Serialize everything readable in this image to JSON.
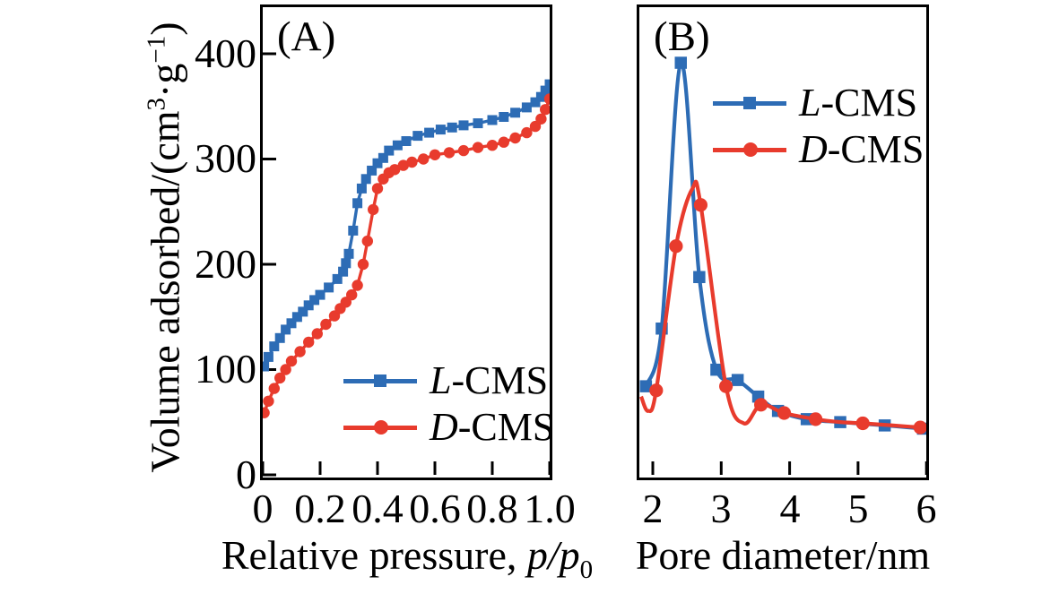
{
  "figure": {
    "background": "#ffffff",
    "axis_color": "#000000",
    "colors": {
      "l_cms_blue": "#2d6cb5",
      "d_cms_red": "#e83b2d"
    }
  },
  "chart_data": [
    {
      "panel": "A",
      "panel_label": "(A)",
      "type": "line",
      "smooth": false,
      "xlabel": "Relative pressure, p/p₀",
      "xlabel_parts": {
        "lead": "Relative pressure, ",
        "math": "p/p",
        "sub": "0"
      },
      "ylabel": "Volume adsorbed/(cm³·g⁻¹)",
      "ylabel_parts": [
        "Volume adsorbed/(cm",
        "3",
        "·g",
        "−1",
        ")"
      ],
      "xlim": [
        0,
        1.0
      ],
      "ylim": [
        0,
        444
      ],
      "x_ticks": [
        "0",
        "0.2",
        "0.4",
        "0.6",
        "0.8",
        "1.0"
      ],
      "y_ticks": [
        "0",
        "100",
        "200",
        "300",
        "400"
      ],
      "grid": false,
      "legend_position": "lower right",
      "series": [
        {
          "name": "L-CMS",
          "name_parts": {
            "italic": "L",
            "rest": "-CMS"
          },
          "color": "#2d6cb5",
          "marker": "square",
          "points": [
            [
              0.005,
              103
            ],
            [
              0.02,
              112
            ],
            [
              0.04,
              122
            ],
            [
              0.06,
              130
            ],
            [
              0.08,
              138
            ],
            [
              0.1,
              144
            ],
            [
              0.12,
              150
            ],
            [
              0.14,
              155
            ],
            [
              0.16,
              161
            ],
            [
              0.18,
              166
            ],
            [
              0.2,
              171
            ],
            [
              0.23,
              178
            ],
            [
              0.26,
              186
            ],
            [
              0.28,
              193
            ],
            [
              0.29,
              201
            ],
            [
              0.3,
              210
            ],
            [
              0.315,
              232
            ],
            [
              0.33,
              258
            ],
            [
              0.345,
              272
            ],
            [
              0.36,
              281
            ],
            [
              0.38,
              289
            ],
            [
              0.4,
              296
            ],
            [
              0.42,
              301
            ],
            [
              0.44,
              308
            ],
            [
              0.47,
              313
            ],
            [
              0.5,
              317
            ],
            [
              0.54,
              322
            ],
            [
              0.58,
              325
            ],
            [
              0.62,
              328
            ],
            [
              0.66,
              330
            ],
            [
              0.7,
              332
            ],
            [
              0.75,
              334
            ],
            [
              0.8,
              337
            ],
            [
              0.84,
              340
            ],
            [
              0.88,
              344
            ],
            [
              0.92,
              349
            ],
            [
              0.95,
              354
            ],
            [
              0.97,
              359
            ],
            [
              0.985,
              365
            ],
            [
              1.0,
              371
            ]
          ]
        },
        {
          "name": "D-CMS",
          "name_parts": {
            "italic": "D",
            "rest": "-CMS"
          },
          "color": "#e83b2d",
          "marker": "circle",
          "points": [
            [
              0.005,
              59
            ],
            [
              0.02,
              70
            ],
            [
              0.04,
              82
            ],
            [
              0.06,
              92
            ],
            [
              0.08,
              100
            ],
            [
              0.1,
              108
            ],
            [
              0.13,
              117
            ],
            [
              0.16,
              126
            ],
            [
              0.19,
              134
            ],
            [
              0.22,
              143
            ],
            [
              0.25,
              151
            ],
            [
              0.27,
              158
            ],
            [
              0.29,
              164
            ],
            [
              0.31,
              171
            ],
            [
              0.33,
              180
            ],
            [
              0.35,
              200
            ],
            [
              0.365,
              222
            ],
            [
              0.385,
              252
            ],
            [
              0.4,
              272
            ],
            [
              0.42,
              281
            ],
            [
              0.44,
              287
            ],
            [
              0.46,
              290
            ],
            [
              0.49,
              294
            ],
            [
              0.52,
              297
            ],
            [
              0.56,
              300
            ],
            [
              0.6,
              304
            ],
            [
              0.65,
              306
            ],
            [
              0.7,
              308
            ],
            [
              0.75,
              311
            ],
            [
              0.8,
              313
            ],
            [
              0.84,
              316
            ],
            [
              0.88,
              320
            ],
            [
              0.92,
              325
            ],
            [
              0.95,
              331
            ],
            [
              0.97,
              338
            ],
            [
              0.985,
              347
            ],
            [
              1.0,
              357
            ]
          ]
        }
      ]
    },
    {
      "panel": "B",
      "panel_label": "(B)",
      "type": "line",
      "smooth": true,
      "xlabel": "Pore diameter/nm",
      "ylabel": "",
      "xlim": [
        1.8,
        6.0
      ],
      "ylim": [
        0,
        1.13
      ],
      "x_ticks": [
        "2",
        "3",
        "4",
        "5",
        "6"
      ],
      "grid": false,
      "legend_position": "upper right",
      "series": [
        {
          "name": "L-CMS",
          "name_parts": {
            "italic": "L",
            "rest": "-CMS"
          },
          "color": "#2d6cb5",
          "marker": "square",
          "peak_diameter_nm": 2.41,
          "points": [
            [
              1.9,
              0.215
            ],
            [
              2.13,
              0.355
            ],
            [
              2.41,
              1.0
            ],
            [
              2.68,
              0.48
            ],
            [
              2.93,
              0.255
            ],
            [
              3.24,
              0.23
            ],
            [
              3.54,
              0.19
            ],
            [
              3.83,
              0.155
            ],
            [
              4.25,
              0.135
            ],
            [
              4.74,
              0.128
            ],
            [
              5.39,
              0.12
            ],
            [
              5.95,
              0.112
            ]
          ]
        },
        {
          "name": "D-CMS",
          "name_parts": {
            "italic": "D",
            "rest": "-CMS"
          },
          "color": "#e83b2d",
          "marker": "circle",
          "peak_diameter_nm": 2.58,
          "points": [
            [
              1.83,
              0.19
            ],
            [
              1.93,
              0.155
            ],
            [
              2.05,
              0.205
            ],
            [
              2.34,
              0.555
            ],
            [
              2.58,
              0.695
            ],
            [
              2.7,
              0.655
            ],
            [
              3.07,
              0.215
            ],
            [
              3.33,
              0.125
            ],
            [
              3.58,
              0.17
            ],
            [
              3.92,
              0.15
            ],
            [
              4.38,
              0.135
            ],
            [
              4.74,
              0.128
            ],
            [
              5.07,
              0.125
            ],
            [
              5.91,
              0.115
            ]
          ],
          "markers": [
            [
              2.05,
              0.205
            ],
            [
              2.34,
              0.555
            ],
            [
              2.7,
              0.655
            ],
            [
              3.07,
              0.215
            ],
            [
              3.58,
              0.17
            ],
            [
              3.92,
              0.15
            ],
            [
              4.38,
              0.135
            ],
            [
              5.07,
              0.125
            ],
            [
              5.91,
              0.115
            ]
          ]
        }
      ]
    }
  ]
}
